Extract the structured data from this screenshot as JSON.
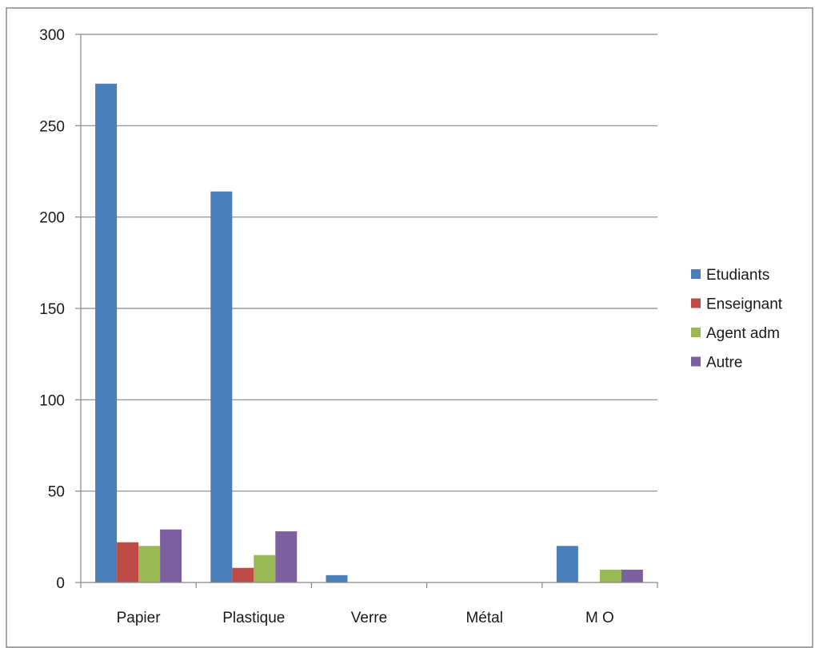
{
  "chart_data": {
    "type": "bar",
    "title": "",
    "xlabel": "",
    "ylabel": "",
    "categories": [
      "Papier",
      "Plastique",
      "Verre",
      "Métal",
      "M O"
    ],
    "series": [
      {
        "name": "Etudiants",
        "color": "#4a7ebb",
        "values": [
          273,
          214,
          4,
          0,
          20
        ]
      },
      {
        "name": "Enseignant",
        "color": "#be4b48",
        "values": [
          22,
          8,
          0,
          0,
          0
        ]
      },
      {
        "name": "Agent adm",
        "color": "#98b954",
        "values": [
          20,
          15,
          0,
          0,
          7
        ]
      },
      {
        "name": "Autre",
        "color": "#7d60a0",
        "values": [
          29,
          28,
          0,
          0,
          7
        ]
      }
    ],
    "ylim": [
      0,
      300
    ],
    "yticks": [
      0,
      50,
      100,
      150,
      200,
      250,
      300
    ],
    "grid": true,
    "legend_position": "right"
  }
}
